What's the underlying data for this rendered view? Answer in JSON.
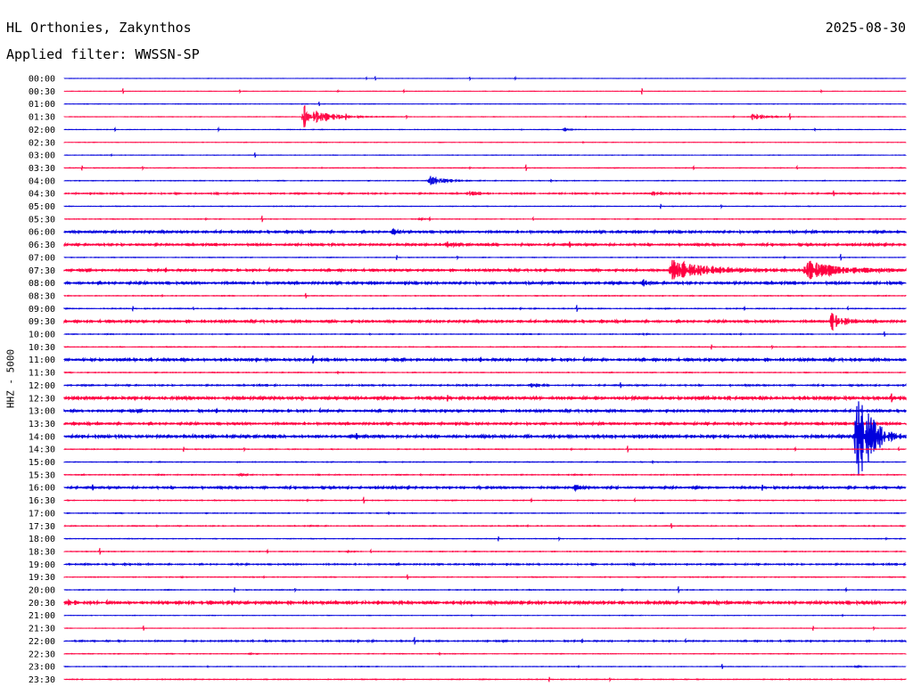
{
  "header": {
    "station": "HL Orthonies, Zakynthos",
    "date": "2025-08-30",
    "filter": "Applied filter: WWSSN-SP"
  },
  "chart_data": {
    "type": "line",
    "title": "HL Orthonies, Zakynthos",
    "ylabel": "HHZ - 5000",
    "row_interval_minutes": 30,
    "trace_colors": [
      "#0000dd",
      "#ff0040"
    ],
    "rows": [
      "00:00",
      "00:30",
      "01:00",
      "01:30",
      "02:00",
      "02:30",
      "03:00",
      "03:30",
      "04:00",
      "04:30",
      "05:00",
      "05:30",
      "06:00",
      "06:30",
      "07:00",
      "07:30",
      "08:00",
      "08:30",
      "09:00",
      "09:30",
      "10:00",
      "10:30",
      "11:00",
      "11:30",
      "12:00",
      "12:30",
      "13:00",
      "13:30",
      "14:00",
      "14:30",
      "15:00",
      "15:30",
      "16:00",
      "16:30",
      "17:00",
      "17:30",
      "18:00",
      "18:30",
      "19:00",
      "19:30",
      "20:00",
      "20:30",
      "21:00",
      "21:30",
      "22:00",
      "22:30",
      "23:00",
      "23:30"
    ],
    "noise": [
      0.2,
      0.2,
      0.3,
      0.3,
      0.3,
      0.3,
      0.3,
      0.4,
      0.4,
      1.0,
      0.4,
      0.4,
      1.2,
      1.1,
      0.4,
      1.1,
      1.3,
      0.5,
      0.6,
      1.2,
      0.5,
      0.5,
      1.3,
      0.5,
      1.0,
      1.6,
      1.2,
      1.2,
      1.6,
      0.5,
      0.5,
      0.6,
      1.1,
      0.5,
      0.5,
      0.6,
      0.4,
      0.5,
      1.0,
      0.5,
      0.5,
      1.6,
      0.3,
      0.3,
      1.0,
      0.4,
      0.4,
      0.5
    ],
    "events": [
      {
        "row": "01:30",
        "minute": 8.5,
        "amplitude": 20,
        "duration": 1.5
      },
      {
        "row": "01:30",
        "minute": 24.5,
        "amplitude": 6,
        "duration": 0.9
      },
      {
        "row": "02:00",
        "minute": 17.8,
        "amplitude": 3,
        "duration": 0.4
      },
      {
        "row": "04:00",
        "minute": 13,
        "amplitude": 10,
        "duration": 1.0
      },
      {
        "row": "04:30",
        "minute": 14.4,
        "amplitude": 3,
        "duration": 0.5
      },
      {
        "row": "04:30",
        "minute": 20.9,
        "amplitude": 4,
        "duration": 0.5
      },
      {
        "row": "05:30",
        "minute": 12.6,
        "amplitude": 2,
        "duration": 0.4
      },
      {
        "row": "06:00",
        "minute": 11.7,
        "amplitude": 5,
        "duration": 0.4
      },
      {
        "row": "06:30",
        "minute": 13.6,
        "amplitude": 5,
        "duration": 0.6
      },
      {
        "row": "07:30",
        "minute": 21.6,
        "amplitude": 15,
        "duration": 2.8
      },
      {
        "row": "07:30",
        "minute": 26.4,
        "amplitude": 14,
        "duration": 2.5
      },
      {
        "row": "08:00",
        "minute": 20.6,
        "amplitude": 5,
        "duration": 0.4
      },
      {
        "row": "09:30",
        "minute": 27.3,
        "amplitude": 14,
        "duration": 0.9
      },
      {
        "row": "10:00",
        "minute": 20.5,
        "amplitude": 3,
        "duration": 0.3
      },
      {
        "row": "12:00",
        "minute": 16.6,
        "amplitude": 4,
        "duration": 0.4
      },
      {
        "row": "14:00",
        "minute": 28.2,
        "amplitude": 100,
        "duration": 1.0
      },
      {
        "row": "15:30",
        "minute": 6.2,
        "amplitude": 2,
        "duration": 0.6
      },
      {
        "row": "16:00",
        "minute": 18.2,
        "amplitude": 5,
        "duration": 0.4
      },
      {
        "row": "18:30",
        "minute": 10.0,
        "amplitude": 3,
        "duration": 0.3
      },
      {
        "row": "19:30",
        "minute": 4.2,
        "amplitude": 3,
        "duration": 0.2
      },
      {
        "row": "20:30",
        "minute": 0.1,
        "amplitude": 6,
        "duration": 0.3
      },
      {
        "row": "22:30",
        "minute": 6.6,
        "amplitude": 2,
        "duration": 0.2
      },
      {
        "row": "23:00",
        "minute": 28.2,
        "amplitude": 2,
        "duration": 0.3
      }
    ],
    "grid": false,
    "legend": "none"
  }
}
